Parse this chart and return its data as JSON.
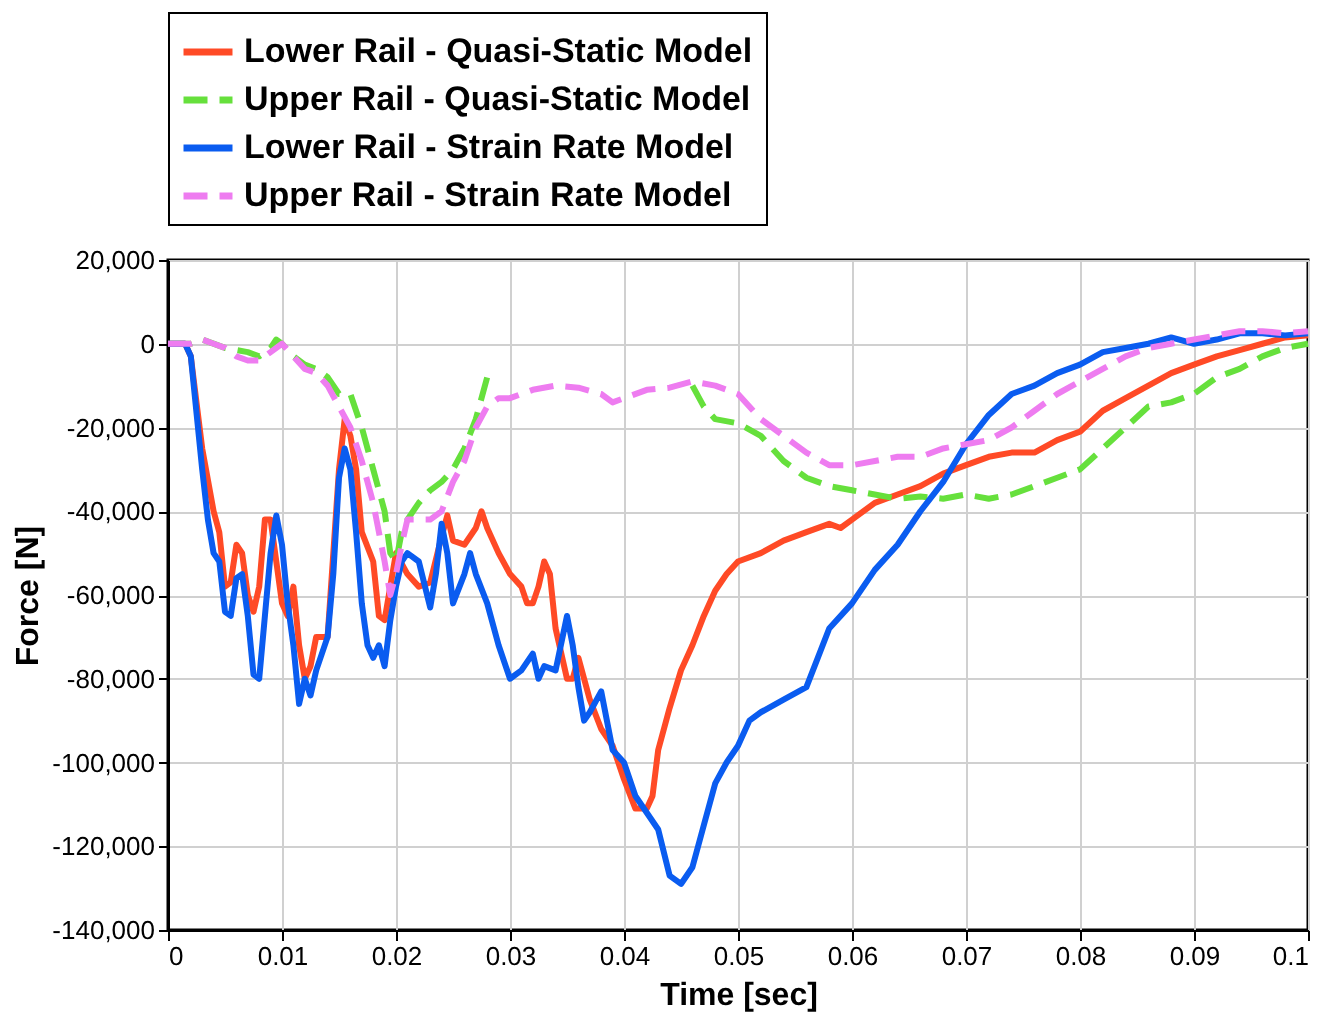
{
  "chart_data": {
    "type": "line",
    "xlabel": "Time [sec]",
    "ylabel": "Force [N]",
    "xlim": [
      0,
      0.1
    ],
    "xticks": [
      0,
      0.01,
      0.02,
      0.03,
      0.04,
      0.05,
      0.06,
      0.07,
      0.08,
      0.09,
      0.1
    ],
    "ylim": [
      -140000,
      20000
    ],
    "yticks": [
      {
        "value": -140000,
        "label": "-140,000"
      },
      {
        "value": -120000,
        "label": "-120,000"
      },
      {
        "value": -100000,
        "label": "-100,000"
      },
      {
        "value": -80000,
        "label": "-80,000"
      },
      {
        "value": -60000,
        "label": "-60,000"
      },
      {
        "value": -40000,
        "label": "-40,000"
      },
      {
        "value": -20000,
        "label": "-20,000"
      },
      0,
      {
        "value": 20000,
        "label": "20,000"
      }
    ],
    "grid": true,
    "legend": "top",
    "marker": "none",
    "series": [
      {
        "name": "Lower Rail - Quasi-Static Model",
        "color": "#ff4a26",
        "line_style": "solid",
        "x": [
          0,
          0.0015,
          0.002,
          0.003,
          0.004,
          0.0045,
          0.005,
          0.0055,
          0.006,
          0.0065,
          0.007,
          0.0075,
          0.008,
          0.0085,
          0.009,
          0.0095,
          0.01,
          0.0105,
          0.011,
          0.0115,
          0.012,
          0.0125,
          0.013,
          0.014,
          0.015,
          0.0155,
          0.016,
          0.0165,
          0.017,
          0.018,
          0.0185,
          0.019,
          0.0195,
          0.02,
          0.021,
          0.022,
          0.023,
          0.024,
          0.0245,
          0.025,
          0.026,
          0.027,
          0.0275,
          0.028,
          0.029,
          0.03,
          0.031,
          0.0315,
          0.032,
          0.0325,
          0.033,
          0.0335,
          0.034,
          0.035,
          0.0355,
          0.036,
          0.037,
          0.038,
          0.039,
          0.04,
          0.041,
          0.042,
          0.0425,
          0.043,
          0.044,
          0.045,
          0.046,
          0.047,
          0.048,
          0.049,
          0.05,
          0.052,
          0.054,
          0.056,
          0.058,
          0.059,
          0.06,
          0.062,
          0.064,
          0.066,
          0.068,
          0.07,
          0.072,
          0.074,
          0.076,
          0.078,
          0.08,
          0.082,
          0.084,
          0.086,
          0.088,
          0.09,
          0.092,
          0.094,
          0.096,
          0.098,
          0.1
        ],
        "values": [
          0,
          0,
          -3000,
          -25000,
          -40000,
          -45000,
          -58000,
          -57000,
          -48000,
          -50000,
          -60000,
          -64000,
          -58000,
          -42000,
          -42000,
          -52000,
          -62000,
          -65000,
          -58000,
          -72000,
          -80000,
          -77000,
          -70000,
          -70000,
          -30000,
          -18000,
          -22000,
          -30000,
          -45000,
          -52000,
          -65000,
          -66000,
          -58000,
          -50000,
          -55000,
          -58000,
          -57000,
          -46000,
          -41000,
          -47000,
          -48000,
          -44000,
          -40000,
          -44000,
          -50000,
          -55000,
          -58000,
          -62000,
          -62000,
          -58000,
          -52000,
          -55000,
          -68000,
          -80000,
          -80000,
          -75000,
          -85000,
          -92000,
          -96000,
          -104000,
          -111000,
          -111000,
          -108000,
          -97000,
          -87000,
          -78000,
          -72000,
          -65000,
          -59000,
          -55000,
          -52000,
          -50000,
          -47000,
          -45000,
          -43000,
          -44000,
          -42000,
          -38000,
          -36000,
          -34000,
          -31000,
          -29000,
          -27000,
          -26000,
          -26000,
          -23000,
          -21000,
          -16000,
          -13000,
          -10000,
          -7000,
          -5000,
          -3000,
          -1500,
          0,
          1500,
          2000
        ]
      },
      {
        "name": "Upper Rail - Quasi-Static Model",
        "color": "#66e03c",
        "line_style": "dashed",
        "x": [
          0,
          0.002,
          0.003,
          0.005,
          0.007,
          0.008,
          0.009,
          0.0095,
          0.01,
          0.011,
          0.012,
          0.013,
          0.014,
          0.015,
          0.016,
          0.017,
          0.018,
          0.019,
          0.0195,
          0.02,
          0.0205,
          0.021,
          0.022,
          0.023,
          0.024,
          0.025,
          0.026,
          0.027,
          0.028,
          0.03,
          0.044,
          0.046,
          0.047,
          0.048,
          0.05,
          0.052,
          0.054,
          0.056,
          0.058,
          0.06,
          0.062,
          0.064,
          0.066,
          0.068,
          0.07,
          0.072,
          0.074,
          0.076,
          0.078,
          0.08,
          0.082,
          0.084,
          0.086,
          0.088,
          0.09,
          0.092,
          0.094,
          0.096,
          0.098,
          0.1
        ],
        "values": [
          0,
          0,
          1000,
          -1000,
          -2000,
          -3000,
          -1000,
          1000,
          0,
          -3000,
          -5000,
          -6000,
          -8000,
          -12000,
          -12000,
          -20000,
          -30000,
          -40000,
          -50000,
          -52000,
          -45000,
          -42000,
          -38000,
          -35000,
          -33000,
          -30000,
          -25000,
          -18000,
          -8000,
          null,
          null,
          -10000,
          -15000,
          -18000,
          -19000,
          -22000,
          -28000,
          -32000,
          -34000,
          -35000,
          -36000,
          -37000,
          -36500,
          -37000,
          -36000,
          -37000,
          -36000,
          -34000,
          -32000,
          -30000,
          -25000,
          -20000,
          -15000,
          -14000,
          -12000,
          -8000,
          -6000,
          -3000,
          -1000,
          0
        ]
      },
      {
        "name": "Lower Rail - Strain Rate Model",
        "color": "#0a5cf0",
        "line_style": "solid",
        "x": [
          0,
          0.0015,
          0.002,
          0.003,
          0.0035,
          0.004,
          0.0045,
          0.005,
          0.0055,
          0.006,
          0.0065,
          0.007,
          0.0075,
          0.008,
          0.0085,
          0.009,
          0.0095,
          0.01,
          0.0105,
          0.011,
          0.0115,
          0.012,
          0.0125,
          0.013,
          0.014,
          0.0145,
          0.015,
          0.0155,
          0.016,
          0.0165,
          0.017,
          0.0175,
          0.018,
          0.0185,
          0.019,
          0.0195,
          0.02,
          0.0205,
          0.021,
          0.022,
          0.023,
          0.0235,
          0.024,
          0.0245,
          0.025,
          0.026,
          0.0265,
          0.027,
          0.028,
          0.029,
          0.03,
          0.031,
          0.032,
          0.0325,
          0.033,
          0.034,
          0.035,
          0.0355,
          0.036,
          0.0365,
          0.037,
          0.038,
          0.039,
          0.04,
          0.041,
          0.042,
          0.043,
          0.044,
          0.045,
          0.046,
          0.047,
          0.048,
          0.049,
          0.05,
          0.051,
          0.052,
          0.054,
          0.056,
          0.057,
          0.058,
          0.06,
          0.062,
          0.064,
          0.066,
          0.068,
          0.07,
          0.072,
          0.074,
          0.076,
          0.078,
          0.08,
          0.082,
          0.084,
          0.086,
          0.088,
          0.09,
          0.092,
          0.094,
          0.096,
          0.098,
          0.1
        ],
        "values": [
          0,
          0,
          -3000,
          -30000,
          -42000,
          -50000,
          -52000,
          -64000,
          -65000,
          -56000,
          -55000,
          -65000,
          -79000,
          -80000,
          -65000,
          -50000,
          -41000,
          -48000,
          -62000,
          -72000,
          -86000,
          -80000,
          -84000,
          -78000,
          -70000,
          -55000,
          -32000,
          -25000,
          -30000,
          -45000,
          -62000,
          -72000,
          -75000,
          -72000,
          -77000,
          -66000,
          -58000,
          -52000,
          -50000,
          -52000,
          -63000,
          -55000,
          -43000,
          -50000,
          -62000,
          -55000,
          -50000,
          -55000,
          -62000,
          -72000,
          -80000,
          -78000,
          -74000,
          -80000,
          -77000,
          -78000,
          -65000,
          -72000,
          -82000,
          -90000,
          -88000,
          -83000,
          -97000,
          -100000,
          -108000,
          -112000,
          -116000,
          -127000,
          -129000,
          -125000,
          -115000,
          -105000,
          -100000,
          -96000,
          -90000,
          -88000,
          -85000,
          -82000,
          -75000,
          -68000,
          -62000,
          -54000,
          -48000,
          -40000,
          -33000,
          -24000,
          -17000,
          -12000,
          -10000,
          -7000,
          -5000,
          -2000,
          -1000,
          0,
          1500,
          0,
          1000,
          2500,
          2500,
          2000,
          2500
        ]
      },
      {
        "name": "Upper Rail - Strain Rate Model",
        "color": "#ee7cf0",
        "line_style": "dashed",
        "x": [
          0,
          0.002,
          0.003,
          0.004,
          0.005,
          0.006,
          0.007,
          0.008,
          0.009,
          0.01,
          0.011,
          0.012,
          0.013,
          0.014,
          0.015,
          0.016,
          0.017,
          0.018,
          0.019,
          0.0195,
          0.02,
          0.0205,
          0.021,
          0.022,
          0.023,
          0.024,
          0.025,
          0.026,
          0.027,
          0.028,
          0.029,
          0.03,
          0.032,
          0.034,
          0.036,
          0.038,
          0.039,
          0.04,
          0.042,
          0.044,
          0.046,
          0.048,
          0.05,
          0.052,
          0.054,
          0.056,
          0.058,
          0.06,
          0.062,
          0.064,
          0.066,
          0.068,
          0.07,
          0.072,
          0.074,
          0.076,
          0.078,
          0.08,
          0.082,
          0.084,
          0.086,
          0.088,
          0.09,
          0.092,
          0.094,
          0.096,
          0.098,
          0.1
        ],
        "values": [
          0,
          0,
          1000,
          0,
          -1000,
          -3000,
          -4000,
          -4000,
          -2000,
          0,
          -3000,
          -6000,
          -7000,
          -10000,
          -15000,
          -20000,
          -28000,
          -38000,
          -52000,
          -60000,
          -55000,
          -48000,
          -42000,
          -42000,
          -42000,
          -40000,
          -33000,
          -28000,
          -20000,
          -15000,
          -13000,
          -13000,
          -11000,
          -10000,
          -10500,
          -12000,
          -14000,
          -13000,
          -11000,
          -10500,
          -9000,
          -10000,
          -12000,
          -18000,
          -22000,
          -26000,
          -29000,
          -29000,
          -28000,
          -27000,
          -27000,
          -25000,
          -24000,
          -23000,
          -20000,
          -16000,
          -12000,
          -9000,
          -6000,
          -3000,
          -1000,
          0,
          1000,
          2000,
          3000,
          3000,
          2500,
          3000
        ]
      }
    ]
  }
}
